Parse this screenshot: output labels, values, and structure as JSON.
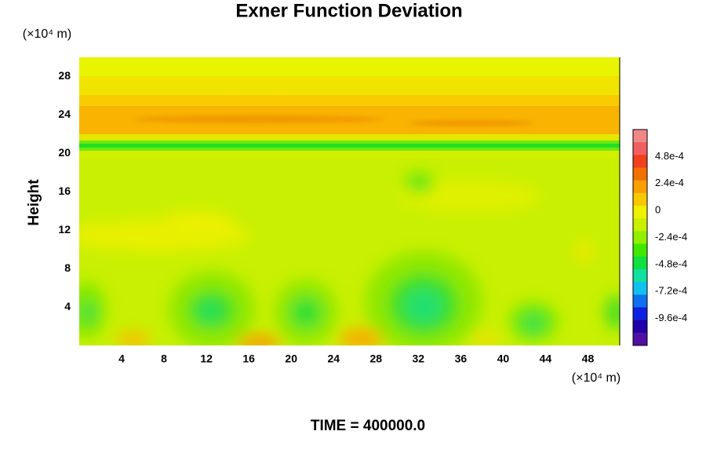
{
  "chart_data": {
    "type": "contour",
    "title": "Exner Function Deviation",
    "x_unit_label": "(×10⁴ m)",
    "y_unit_label": "(×10⁴ m)",
    "ylabel": "Height",
    "footer": "TIME = 400000.0",
    "xlim": [
      0,
      51
    ],
    "xticks": [
      4,
      8,
      12,
      16,
      20,
      24,
      28,
      32,
      36,
      40,
      44,
      48
    ],
    "ylim": [
      0,
      30
    ],
    "yticks": [
      4,
      8,
      12,
      16,
      20,
      24,
      28
    ],
    "colorbar": {
      "lim": [
        -0.0012,
        0.00072
      ],
      "ticks": [
        {
          "value": 0.00048,
          "label": "4.8e-4"
        },
        {
          "value": 0.00024,
          "label": "2.4e-4"
        },
        0,
        {
          "value": -0.00024,
          "label": "-2.4e-4"
        },
        {
          "value": -0.00048,
          "label": "-4.8e-4"
        },
        {
          "value": -0.00072,
          "label": "-7.2e-4"
        },
        {
          "value": -0.00096,
          "label": "-9.6e-4"
        }
      ],
      "colors": [
        "#f08888",
        "#f06060",
        "#f04020",
        "#f07000",
        "#f8a000",
        "#f8c800",
        "#f0f000",
        "#c8f000",
        "#90f000",
        "#40e800",
        "#10e040",
        "#10e0a0",
        "#10c0f0",
        "#1070f0",
        "#1020e0",
        "#2000a8",
        "#5010a0"
      ]
    }
  }
}
